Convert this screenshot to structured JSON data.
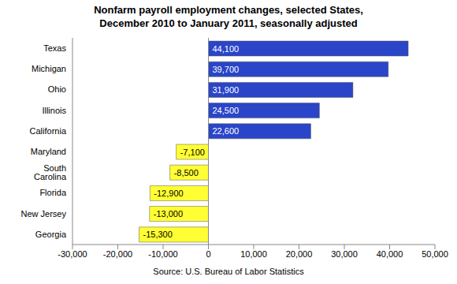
{
  "chart_data": {
    "type": "bar",
    "orientation": "horizontal",
    "title": "Nonfarm payroll employment changes, selected States,\nDecember 2010 to January 2011, seasonally adjusted",
    "source": "Source: U.S. Bureau of Labor Statistics",
    "categories": [
      "Texas",
      "Michigan",
      "Ohio",
      "Illinois",
      "California",
      "Maryland",
      "South Carolina",
      "Florida",
      "New Jersey",
      "Georgia"
    ],
    "values": [
      44100,
      39700,
      31900,
      24500,
      22600,
      -7100,
      -8500,
      -12900,
      -13000,
      -15300
    ],
    "value_labels": [
      "44,100",
      "39,700",
      "31,900",
      "24,500",
      "22,600",
      "-7,100",
      "-8,500",
      "-12,900",
      "-13,000",
      "-15,300"
    ],
    "colors": [
      "#2a45c8",
      "#2a45c8",
      "#2a45c8",
      "#2a45c8",
      "#2a45c8",
      "#ffff33",
      "#ffff33",
      "#ffff33",
      "#ffff33",
      "#ffff33"
    ],
    "xlim": [
      -30000,
      50000
    ],
    "xticks": [
      {
        "value": -30000,
        "label": "-30,000"
      },
      {
        "value": -20000,
        "label": "-20,000"
      },
      {
        "value": -10000,
        "label": "-10,000"
      },
      0,
      {
        "value": 10000,
        "label": "10,000"
      },
      {
        "value": 20000,
        "label": "20,000"
      },
      {
        "value": 30000,
        "label": "30,000"
      },
      {
        "value": 40000,
        "label": "40,000"
      },
      {
        "value": 50000,
        "label": "50,000"
      }
    ],
    "data_labels": true,
    "grid": false
  }
}
